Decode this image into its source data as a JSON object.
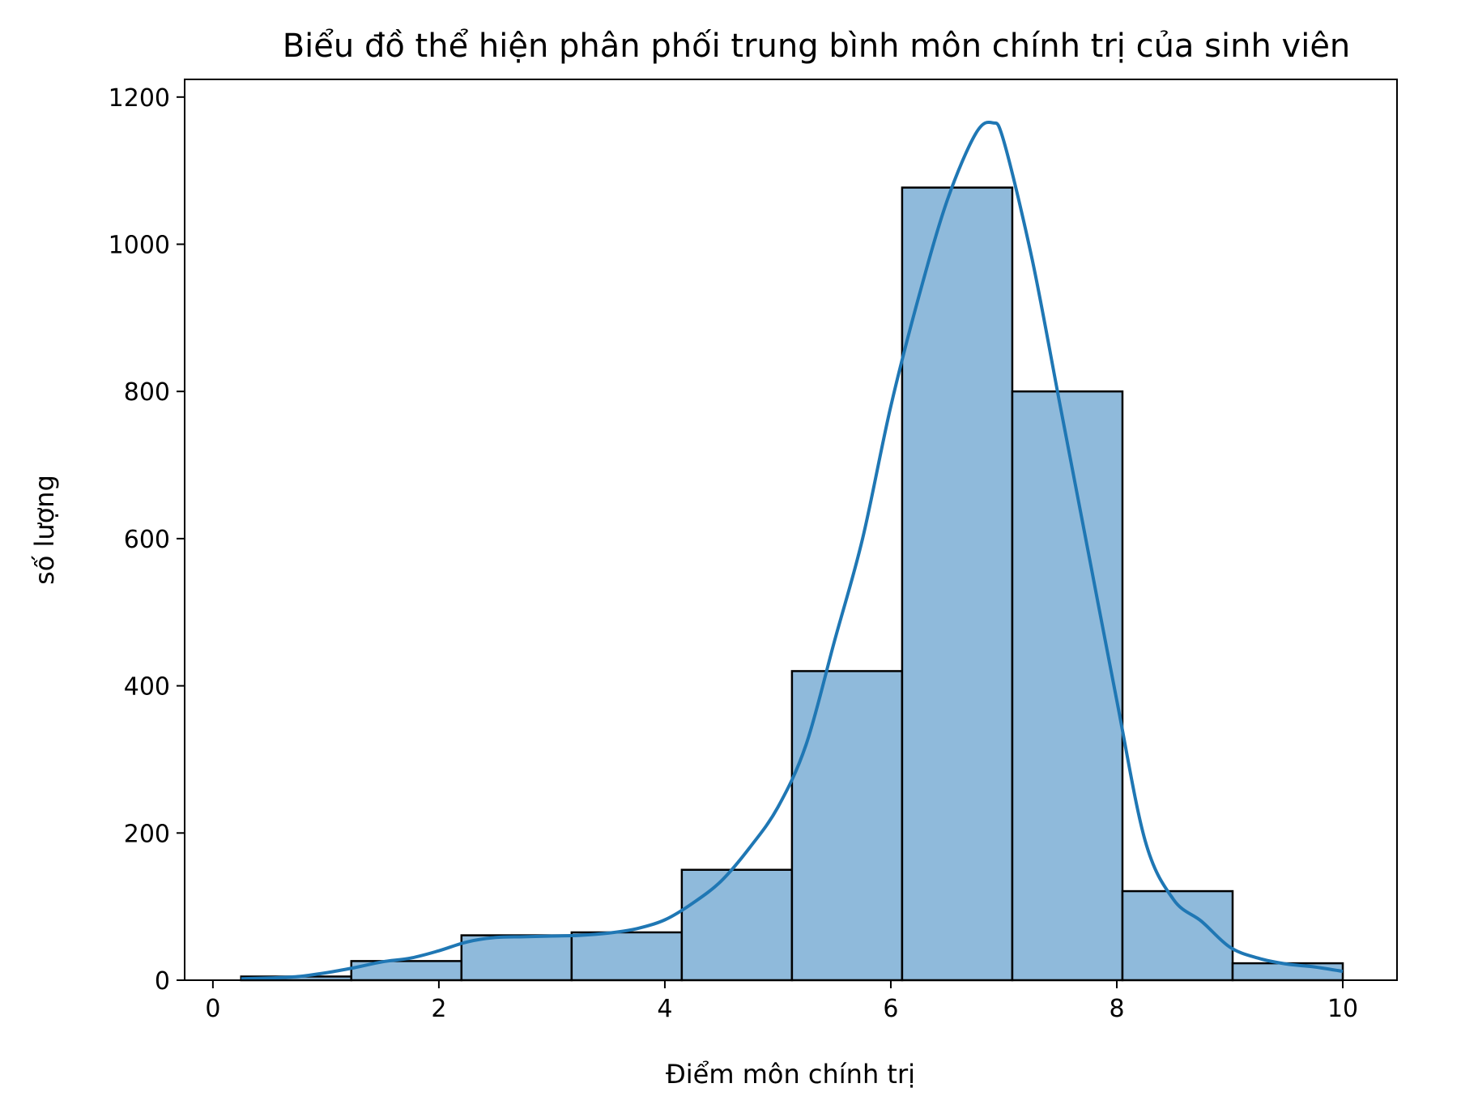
{
  "chart_data": {
    "type": "bar",
    "title": "Biểu đồ thể hiện phân phối trung bình môn chính trị của sinh viên",
    "xlabel": "Điểm môn chính trị",
    "ylabel": "số lượng",
    "xlim": [
      -0.25,
      10.48
    ],
    "ylim": [
      0,
      1224
    ],
    "x_ticks": [
      0,
      2,
      4,
      6,
      8,
      10
    ],
    "y_ticks": [
      0,
      200,
      400,
      600,
      800,
      1000,
      1200
    ],
    "bins": [
      {
        "x0": 0.25,
        "x1": 1.225,
        "count": 5
      },
      {
        "x0": 1.225,
        "x1": 2.2,
        "count": 26
      },
      {
        "x0": 2.2,
        "x1": 3.175,
        "count": 61
      },
      {
        "x0": 3.175,
        "x1": 4.15,
        "count": 65
      },
      {
        "x0": 4.15,
        "x1": 5.125,
        "count": 150
      },
      {
        "x0": 5.125,
        "x1": 6.1,
        "count": 420
      },
      {
        "x0": 6.1,
        "x1": 7.075,
        "count": 1077
      },
      {
        "x0": 7.075,
        "x1": 8.05,
        "count": 800
      },
      {
        "x0": 8.05,
        "x1": 9.025,
        "count": 121
      },
      {
        "x0": 9.025,
        "x1": 10.0,
        "count": 23
      }
    ],
    "kde": {
      "x": [
        0.25,
        0.5,
        0.75,
        1.0,
        1.25,
        1.5,
        1.75,
        2.0,
        2.25,
        2.5,
        2.75,
        3.0,
        3.25,
        3.5,
        3.75,
        4.0,
        4.25,
        4.5,
        4.75,
        5.0,
        5.25,
        5.5,
        5.75,
        6.0,
        6.25,
        6.5,
        6.75,
        6.9,
        7.0,
        7.25,
        7.5,
        7.75,
        8.0,
        8.25,
        8.5,
        8.75,
        9.0,
        9.25,
        9.5,
        9.75,
        10.0
      ],
      "y": [
        2,
        3,
        5,
        10,
        17,
        25,
        30,
        40,
        52,
        58,
        59,
        60,
        61,
        64,
        70,
        82,
        105,
        135,
        180,
        235,
        320,
        460,
        600,
        780,
        930,
        1060,
        1150,
        1165,
        1140,
        980,
        780,
        580,
        380,
        190,
        110,
        80,
        45,
        30,
        22,
        18,
        12
      ]
    },
    "bar_color": "#8fbadb",
    "bar_edge_color": "#000000",
    "line_color": "#1f77b4",
    "grid": false
  }
}
